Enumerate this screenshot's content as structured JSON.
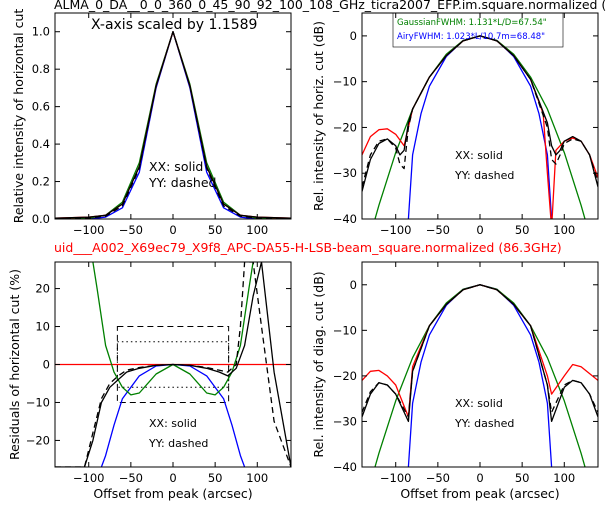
{
  "figure": {
    "top_title": "ALMA_0_DA__0_0_360_0_45_90_92_100_108_GHz_ticra2007_EFP.im.square.normalized (",
    "mid_title": "uid___A002_X69ec79_X9f8_APC-DA55-H-LSB-beam_square.normalized (86.3GHz)",
    "mid_title_color": "#ff0000"
  },
  "chart_data": [
    {
      "id": "top_left",
      "type": "line",
      "ylabel": "Relative intensity of horizontal cut",
      "xlabel": "",
      "xlim": [
        -140,
        140
      ],
      "ylim": [
        0.0,
        1.1
      ],
      "xticks": [
        -100,
        -50,
        0,
        50,
        100
      ],
      "yticks": [
        0.0,
        0.2,
        0.4,
        0.6,
        0.8,
        1.0
      ],
      "xtick_labels": [
        "−100",
        "−50",
        "0",
        "50",
        "100"
      ],
      "ytick_labels": [
        "0.0",
        "0.2",
        "0.4",
        "0.6",
        "0.8",
        "1.0"
      ],
      "annotations": [
        "X-axis scaled by 1.1589",
        "XX: solid",
        "YY: dashed"
      ],
      "series": [
        {
          "color": "#0000ff",
          "style": "solid",
          "x": [
            -140,
            -100,
            -80,
            -60,
            -40,
            -20,
            0,
            20,
            40,
            60,
            80,
            100,
            140
          ],
          "y": [
            0.0,
            0.0,
            0.01,
            0.06,
            0.25,
            0.7,
            1.0,
            0.7,
            0.25,
            0.06,
            0.01,
            0.0,
            0.0
          ]
        },
        {
          "color": "#008000",
          "style": "solid",
          "x": [
            -140,
            -100,
            -80,
            -60,
            -40,
            -20,
            0,
            20,
            40,
            60,
            80,
            100,
            140
          ],
          "y": [
            0.0,
            0.005,
            0.02,
            0.09,
            0.3,
            0.72,
            1.0,
            0.72,
            0.3,
            0.09,
            0.02,
            0.005,
            0.0
          ]
        },
        {
          "color": "#ff0000",
          "style": "solid",
          "x": [
            -140,
            -100,
            -80,
            -60,
            -40,
            -20,
            0,
            20,
            40,
            60,
            80,
            100,
            140
          ],
          "y": [
            0.005,
            0.01,
            0.02,
            0.08,
            0.28,
            0.71,
            1.0,
            0.71,
            0.28,
            0.08,
            0.02,
            0.01,
            0.005
          ]
        },
        {
          "color": "#000000",
          "style": "solid",
          "x": [
            -140,
            -100,
            -80,
            -60,
            -40,
            -20,
            0,
            20,
            40,
            60,
            80,
            100,
            140
          ],
          "y": [
            0.005,
            0.01,
            0.02,
            0.08,
            0.28,
            0.71,
            1.0,
            0.71,
            0.28,
            0.08,
            0.02,
            0.01,
            0.005
          ]
        },
        {
          "color": "#000000",
          "style": "dashed",
          "x": [
            -140,
            -100,
            -80,
            -60,
            -40,
            -20,
            0,
            20,
            40,
            60,
            80,
            100,
            140
          ],
          "y": [
            0.0,
            0.005,
            0.015,
            0.07,
            0.27,
            0.71,
            1.0,
            0.71,
            0.27,
            0.07,
            0.015,
            0.005,
            0.0
          ]
        }
      ]
    },
    {
      "id": "top_right",
      "type": "line",
      "ylabel": "Rel. intensity of horiz. cut (dB)",
      "xlabel": "",
      "xlim": [
        -140,
        140
      ],
      "ylim": [
        -40,
        5
      ],
      "xticks": [
        -100,
        -50,
        0,
        50,
        100
      ],
      "yticks": [
        -40,
        -30,
        -20,
        -10,
        0
      ],
      "xtick_labels": [
        "−100",
        "−50",
        "0",
        "50",
        "100"
      ],
      "ytick_labels": [
        "−40",
        "−30",
        "−20",
        "−10",
        "0"
      ],
      "annotations": [
        "XX: solid",
        "YY: dashed"
      ],
      "legend": [
        {
          "label": "GaussianFWHM: 1.131*L/D=67.54\"",
          "color": "#008000"
        },
        {
          "label": "AiryFWHM: 1.023*L/10.7m=68.48\"",
          "color": "#0000ff"
        }
      ],
      "series": [
        {
          "color": "#0000ff",
          "style": "solid",
          "x": [
            -85,
            -80,
            -70,
            -60,
            -40,
            -20,
            0,
            20,
            40,
            60,
            70,
            80,
            85
          ],
          "y": [
            -40,
            -26,
            -17,
            -11,
            -4.5,
            -1,
            0,
            -1,
            -4.5,
            -11,
            -17,
            -26,
            -40
          ]
        },
        {
          "color": "#008000",
          "style": "solid",
          "x": [
            -140,
            -120,
            -100,
            -80,
            -60,
            -40,
            -20,
            0,
            20,
            40,
            60,
            80,
            100,
            120,
            140
          ],
          "y": [
            -50,
            -37,
            -25.5,
            -16,
            -9,
            -4,
            -1,
            0,
            -1,
            -4,
            -9,
            -16,
            -25.5,
            -37,
            -50
          ]
        },
        {
          "color": "#ff0000",
          "style": "solid",
          "x": [
            -140,
            -130,
            -120,
            -110,
            -100,
            -90,
            -80,
            -60,
            -40,
            -20,
            0,
            20,
            40,
            60,
            75,
            80,
            85,
            90,
            100,
            110,
            120,
            130,
            140
          ],
          "y": [
            -26,
            -22,
            -20.5,
            -20.3,
            -21.5,
            -24,
            -16,
            -9,
            -4.3,
            -1.1,
            0,
            -1.1,
            -4.3,
            -9.5,
            -17,
            -30,
            -42,
            -25,
            -23,
            -22.3,
            -23,
            -26,
            -31
          ]
        },
        {
          "color": "#000000",
          "style": "solid",
          "x": [
            -140,
            -130,
            -120,
            -110,
            -100,
            -95,
            -90,
            -85,
            -80,
            -60,
            -40,
            -20,
            0,
            20,
            40,
            60,
            80,
            85,
            90,
            95,
            100,
            110,
            120,
            130,
            140
          ],
          "y": [
            -34,
            -27,
            -23.5,
            -22.5,
            -24,
            -26,
            -25,
            -19,
            -16,
            -9,
            -4.3,
            -1.1,
            0,
            -1.1,
            -4.3,
            -9.5,
            -19,
            -24,
            -26,
            -25,
            -23,
            -22,
            -23,
            -26,
            -33
          ]
        },
        {
          "color": "#000000",
          "style": "dashed",
          "x": [
            -140,
            -130,
            -120,
            -110,
            -100,
            -95,
            -90,
            -85,
            -80,
            -60,
            -40,
            -20,
            0,
            20,
            40,
            60,
            80,
            85,
            90,
            95,
            100,
            110,
            120,
            130,
            140
          ],
          "y": [
            -33,
            -26,
            -23,
            -22.5,
            -24.5,
            -28,
            -29,
            -20,
            -16,
            -9,
            -4.3,
            -1.1,
            0,
            -1.1,
            -4.3,
            -9.5,
            -20,
            -27,
            -28,
            -26,
            -23.5,
            -22.5,
            -23,
            -26,
            -32
          ]
        }
      ]
    },
    {
      "id": "bottom_left",
      "type": "line",
      "ylabel": "Residuals of horizontal cut (%)",
      "xlabel": "Offset from peak (arcsec)",
      "xlim": [
        -140,
        140
      ],
      "ylim": [
        -27,
        27
      ],
      "xticks": [
        -100,
        -50,
        0,
        50,
        100
      ],
      "yticks": [
        -20,
        -10,
        0,
        10,
        20
      ],
      "xtick_labels": [
        "−100",
        "−50",
        "0",
        "50",
        "100"
      ],
      "ytick_labels": [
        "−20",
        "−10",
        "0",
        "10",
        "20"
      ],
      "annotations": [
        "XX: solid",
        "YY: dashed"
      ],
      "series": [
        {
          "color": "#ff0000",
          "style": "solid",
          "x": [
            -140,
            140
          ],
          "y": [
            0,
            0
          ]
        },
        {
          "color": "#0000ff",
          "style": "solid",
          "x": [
            -85,
            -80,
            -70,
            -60,
            -40,
            -20,
            0,
            20,
            40,
            60,
            70,
            80,
            85
          ],
          "y": [
            -27,
            -24,
            -16,
            -9,
            -3,
            -0.4,
            0,
            -0.4,
            -3,
            -9,
            -16,
            -24,
            -27
          ]
        },
        {
          "color": "#008000",
          "style": "solid",
          "x": [
            -95,
            -90,
            -80,
            -70,
            -60,
            -50,
            -40,
            -20,
            0,
            20,
            40,
            50,
            60,
            70,
            80,
            90,
            95
          ],
          "y": [
            27,
            20,
            5,
            -2,
            -6,
            -8,
            -7.5,
            -2.5,
            0,
            -2.5,
            -7.5,
            -8,
            -6,
            -2,
            5,
            20,
            27
          ]
        },
        {
          "color": "#000000",
          "style": "solid",
          "x": [
            -140,
            -120,
            -105,
            -95,
            -85,
            -75,
            -65,
            -55,
            -40,
            -20,
            0,
            20,
            40,
            55,
            65,
            75,
            85,
            95,
            105,
            120,
            140
          ],
          "y": [
            -27,
            -27,
            -27,
            -20,
            -10,
            -6,
            -4,
            -2,
            -1,
            -0.2,
            0,
            -0.2,
            -1,
            -2,
            -3,
            -1,
            5,
            18,
            27,
            -2,
            -27
          ]
        },
        {
          "color": "#000000",
          "style": "dashed",
          "x": [
            -140,
            -120,
            -105,
            -95,
            -85,
            -75,
            -65,
            -55,
            -40,
            -20,
            0,
            20,
            40,
            55,
            65,
            75,
            80,
            85,
            95,
            105,
            120,
            140
          ],
          "y": [
            -27,
            -27,
            -27,
            -18,
            -9,
            -5,
            -3,
            -1.5,
            -0.8,
            -0.2,
            0,
            -0.2,
            -0.8,
            -1.5,
            -2,
            0,
            10,
            27,
            27,
            10,
            -15,
            -27
          ]
        }
      ],
      "boxes": [
        {
          "style": "dashed",
          "x": [
            -66,
            66
          ],
          "y": [
            -10,
            10
          ]
        },
        {
          "style": "dotted",
          "x": [
            -66,
            66
          ],
          "y": [
            -6,
            6
          ]
        }
      ]
    },
    {
      "id": "bottom_right",
      "type": "line",
      "ylabel": "Rel. intensity of diag. cut (dB)",
      "xlabel": "Offset from peak (arcsec)",
      "xlim": [
        -140,
        140
      ],
      "ylim": [
        -40,
        5
      ],
      "xticks": [
        -100,
        -50,
        0,
        50,
        100
      ],
      "yticks": [
        -40,
        -30,
        -20,
        -10,
        0
      ],
      "xtick_labels": [
        "−100",
        "−50",
        "0",
        "50",
        "100"
      ],
      "ytick_labels": [
        "−40",
        "−30",
        "−20",
        "−10",
        "0"
      ],
      "annotations": [
        "XX: solid",
        "YY: dashed"
      ],
      "series": [
        {
          "color": "#0000ff",
          "style": "solid",
          "x": [
            -85,
            -80,
            -70,
            -60,
            -40,
            -20,
            0,
            20,
            40,
            60,
            70,
            80,
            85
          ],
          "y": [
            -40,
            -26,
            -17,
            -11,
            -4.5,
            -1,
            0,
            -1,
            -4.5,
            -11,
            -17,
            -26,
            -40
          ]
        },
        {
          "color": "#008000",
          "style": "solid",
          "x": [
            -140,
            -120,
            -100,
            -80,
            -60,
            -40,
            -20,
            0,
            20,
            40,
            60,
            80,
            100,
            120,
            140
          ],
          "y": [
            -50,
            -37,
            -25.5,
            -16,
            -9,
            -4,
            -1,
            0,
            -1,
            -4,
            -9,
            -16,
            -25.5,
            -37,
            -50
          ]
        },
        {
          "color": "#ff0000",
          "style": "solid",
          "x": [
            -140,
            -130,
            -120,
            -110,
            -100,
            -85,
            -80,
            -60,
            -40,
            -20,
            0,
            20,
            40,
            60,
            80,
            85,
            100,
            110,
            120,
            130,
            140
          ],
          "y": [
            -21,
            -19,
            -18.8,
            -20,
            -22,
            -29,
            -18,
            -9,
            -4.3,
            -1.1,
            0,
            -1.1,
            -4.3,
            -9,
            -20,
            -24,
            -20,
            -17.5,
            -18,
            -19.5,
            -21
          ]
        },
        {
          "color": "#000000",
          "style": "solid",
          "x": [
            -140,
            -130,
            -120,
            -110,
            -100,
            -85,
            -80,
            -60,
            -40,
            -20,
            0,
            20,
            40,
            60,
            80,
            85,
            100,
            110,
            120,
            130,
            140
          ],
          "y": [
            -29,
            -24,
            -21.5,
            -22,
            -24,
            -30,
            -19,
            -9,
            -4.3,
            -1.1,
            0,
            -1.1,
            -4.3,
            -9,
            -22,
            -30,
            -22.5,
            -21,
            -21.5,
            -24,
            -29
          ]
        },
        {
          "color": "#000000",
          "style": "dashed",
          "x": [
            -140,
            -130,
            -120,
            -110,
            -100,
            -85,
            -80,
            -60,
            -40,
            -20,
            0,
            20,
            40,
            60,
            80,
            85,
            100,
            110,
            120,
            130,
            140
          ],
          "y": [
            -28,
            -23.5,
            -21.5,
            -22,
            -24,
            -29,
            -19,
            -9,
            -4.3,
            -1.1,
            0,
            -1.1,
            -4.3,
            -9,
            -22,
            -28,
            -22,
            -21,
            -21.5,
            -24,
            -28
          ]
        }
      ]
    }
  ]
}
